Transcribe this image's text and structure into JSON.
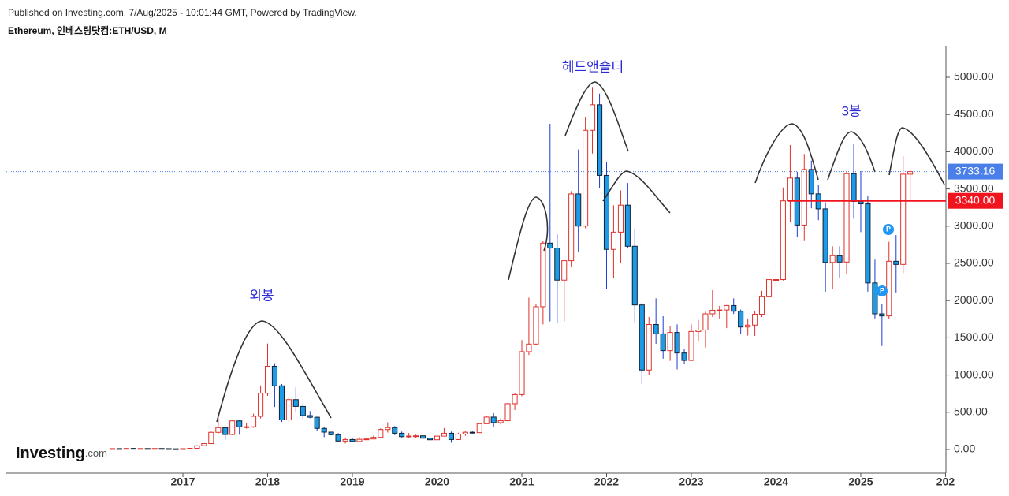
{
  "header": {
    "published": "Published on Investing.com, 7/Aug/2025 - 10:01:44 GMT, Powered by TradingView.",
    "symbol": "Ethereum, 인베스팅닷컴:ETH/USD, M"
  },
  "logo": {
    "name": "Investing",
    "suffix": ".com"
  },
  "annotations": [
    "외봉",
    "헤드앤숄더",
    "3봉"
  ],
  "markers": [
    "P",
    "P"
  ],
  "chart_data": {
    "type": "candlestick",
    "up_color": "#e0302a",
    "down_color": "#1e9be8",
    "x": [
      2016.167,
      2016.25,
      2016.333,
      2016.417,
      2016.5,
      2016.583,
      2016.667,
      2016.75,
      2016.833,
      2016.917,
      2017,
      2017.083,
      2017.167,
      2017.25,
      2017.333,
      2017.417,
      2017.5,
      2017.583,
      2017.667,
      2017.75,
      2017.833,
      2017.917,
      2018,
      2018.083,
      2018.167,
      2018.25,
      2018.333,
      2018.417,
      2018.5,
      2018.583,
      2018.667,
      2018.75,
      2018.833,
      2018.917,
      2019,
      2019.083,
      2019.167,
      2019.25,
      2019.333,
      2019.417,
      2019.5,
      2019.583,
      2019.667,
      2019.75,
      2019.833,
      2019.917,
      2020,
      2020.083,
      2020.167,
      2020.25,
      2020.333,
      2020.417,
      2020.5,
      2020.583,
      2020.667,
      2020.75,
      2020.833,
      2020.917,
      2021,
      2021.083,
      2021.167,
      2021.25,
      2021.333,
      2021.417,
      2021.5,
      2021.583,
      2021.667,
      2021.75,
      2021.833,
      2021.917,
      2022,
      2022.083,
      2022.167,
      2022.25,
      2022.333,
      2022.417,
      2022.5,
      2022.583,
      2022.667,
      2022.75,
      2022.833,
      2022.917,
      2023,
      2023.083,
      2023.167,
      2023.25,
      2023.333,
      2023.417,
      2023.5,
      2023.583,
      2023.667,
      2023.75,
      2023.833,
      2023.917,
      2024,
      2024.083,
      2024.167,
      2024.25,
      2024.333,
      2024.417,
      2024.5,
      2024.583,
      2024.667,
      2024.75,
      2024.833,
      2024.917,
      2025,
      2025.083,
      2025.167,
      2025.25,
      2025.333,
      2025.417,
      2025.5,
      2025.583
    ],
    "open": [
      6.5,
      11.4,
      8.8,
      14,
      12.5,
      12.6,
      11.3,
      13.2,
      11,
      8.7,
      8.2,
      10.7,
      15.7,
      50,
      79,
      230,
      293,
      201,
      384,
      303,
      305,
      445,
      756,
      1118,
      855,
      397,
      670,
      578,
      455,
      433,
      283,
      233,
      198,
      113,
      133,
      107,
      136,
      141,
      162,
      268,
      294,
      218,
      172,
      180,
      183,
      151,
      130,
      179,
      218,
      133,
      207,
      231,
      226,
      346,
      435,
      360,
      386,
      615,
      737,
      1314,
      1416,
      1918,
      2772,
      2706,
      2275,
      2536,
      3433,
      3001,
      4288,
      4631,
      3682,
      2688,
      2920,
      3282,
      2730,
      1942,
      1067,
      1679,
      1553,
      1328,
      1572,
      1296,
      1196,
      1585,
      1605,
      1822,
      1870,
      1874,
      1934,
      1857,
      1645,
      1671,
      1816,
      2052,
      2282,
      2283,
      3340,
      3646,
      3015,
      3762,
      3434,
      3232,
      2513,
      2603,
      2518,
      3705,
      3332,
      3300,
      2237,
      1822,
      1794,
      2528,
      2486,
      3698
    ],
    "high": [
      15,
      12,
      15,
      21,
      15,
      12.9,
      14,
      14,
      11.3,
      8.9,
      11.3,
      16,
      53,
      82,
      240,
      420,
      300,
      390,
      395,
      350,
      480,
      860,
      1423,
      1159,
      880,
      700,
      835,
      620,
      515,
      440,
      300,
      235,
      220,
      160,
      160,
      165,
      145,
      185,
      283,
      365,
      315,
      240,
      223,
      198,
      190,
      152,
      185,
      288,
      240,
      225,
      247,
      253,
      350,
      448,
      488,
      418,
      624,
      758,
      1470,
      2040,
      1948,
      2797,
      4375,
      2890,
      2550,
      3470,
      4030,
      4460,
      4870,
      4780,
      3860,
      3280,
      3480,
      3580,
      2960,
      1970,
      1780,
      2030,
      1790,
      1660,
      1680,
      1350,
      1680,
      1740,
      1850,
      2140,
      1930,
      1940,
      2030,
      1880,
      1750,
      1865,
      2130,
      2410,
      2720,
      3520,
      4090,
      3730,
      3970,
      3880,
      3560,
      3320,
      2730,
      2730,
      3730,
      4110,
      3740,
      3400,
      2550,
      1960,
      2790,
      2880,
      3940,
      3760
    ],
    "low": [
      6.4,
      7.5,
      8.6,
      11.5,
      9.7,
      10.3,
      11.2,
      10.5,
      8.5,
      6.6,
      7.9,
      10.2,
      15.6,
      42,
      76,
      202,
      130,
      193,
      197,
      280,
      290,
      416,
      720,
      570,
      370,
      364,
      498,
      410,
      420,
      250,
      165,
      190,
      100,
      80,
      100,
      100,
      128,
      140,
      158,
      227,
      193,
      160,
      152,
      148,
      138,
      116,
      127,
      178,
      90,
      128,
      183,
      214,
      222,
      343,
      308,
      335,
      380,
      530,
      715,
      1270,
      1410,
      1680,
      1720,
      1700,
      1720,
      2450,
      2650,
      2970,
      3975,
      3510,
      2160,
      2300,
      2500,
      2700,
      1710,
      880,
      1000,
      1420,
      1220,
      1190,
      1075,
      1150,
      1190,
      1460,
      1370,
      1780,
      1760,
      1630,
      1820,
      1550,
      1530,
      1525,
      1780,
      2040,
      2170,
      2270,
      3060,
      2860,
      2810,
      3240,
      3080,
      2120,
      2150,
      2300,
      2360,
      3100,
      2920,
      2120,
      1760,
      1390,
      1750,
      2110,
      2370,
      3350
    ],
    "close": [
      11.4,
      8.8,
      14,
      12.5,
      12.6,
      11.3,
      13.2,
      11,
      8.7,
      8.2,
      10.7,
      15.7,
      50,
      79,
      230,
      293,
      201,
      384,
      303,
      305,
      445,
      756,
      1118,
      855,
      397,
      670,
      578,
      455,
      433,
      283,
      233,
      198,
      113,
      133,
      107,
      136,
      141,
      162,
      268,
      294,
      218,
      172,
      180,
      183,
      151,
      130,
      179,
      218,
      133,
      207,
      231,
      226,
      346,
      435,
      360,
      386,
      615,
      737,
      1314,
      1416,
      1918,
      2772,
      2706,
      2275,
      2536,
      3433,
      3001,
      4288,
      4631,
      3682,
      2688,
      2920,
      3282,
      2730,
      1942,
      1067,
      1679,
      1553,
      1328,
      1572,
      1296,
      1196,
      1585,
      1605,
      1822,
      1870,
      1874,
      1934,
      1857,
      1645,
      1671,
      1816,
      2052,
      2282,
      2283,
      3340,
      3646,
      3015,
      3762,
      3434,
      3232,
      2513,
      2603,
      2518,
      3705,
      3332,
      3300,
      2237,
      1822,
      1794,
      2528,
      2486,
      3698,
      3733
    ],
    "xlim": [
      2014.916,
      2026.005
    ],
    "xticks": [
      2017,
      2018,
      2019,
      2020,
      2021,
      2022,
      2023,
      2024,
      2025,
      {
        "value": 2026,
        "label": "202"
      }
    ],
    "ylim": [
      -318,
      5424
    ],
    "yticks": [
      {
        "value": 0,
        "label": "0.00"
      },
      {
        "value": 500,
        "label": "500.00"
      },
      {
        "value": 1000,
        "label": "1000.00"
      },
      {
        "value": 1500,
        "label": "1500.00"
      },
      {
        "value": 2000,
        "label": "2000.00"
      },
      {
        "value": 2500,
        "label": "2500.00"
      },
      {
        "value": 3000,
        "label": "3000.00"
      },
      {
        "value": 3500,
        "label": "3500.00"
      },
      {
        "value": 4000,
        "label": "4000.00"
      },
      {
        "value": 4500,
        "label": "4500.00"
      },
      {
        "value": 5000,
        "label": "5000.00"
      }
    ],
    "price_line": {
      "value": 3733.16,
      "label": "3733.16",
      "color": "#4a7ee8"
    },
    "level_line": {
      "value": 3340,
      "label": "3340.00",
      "color": "#f0141e"
    }
  }
}
